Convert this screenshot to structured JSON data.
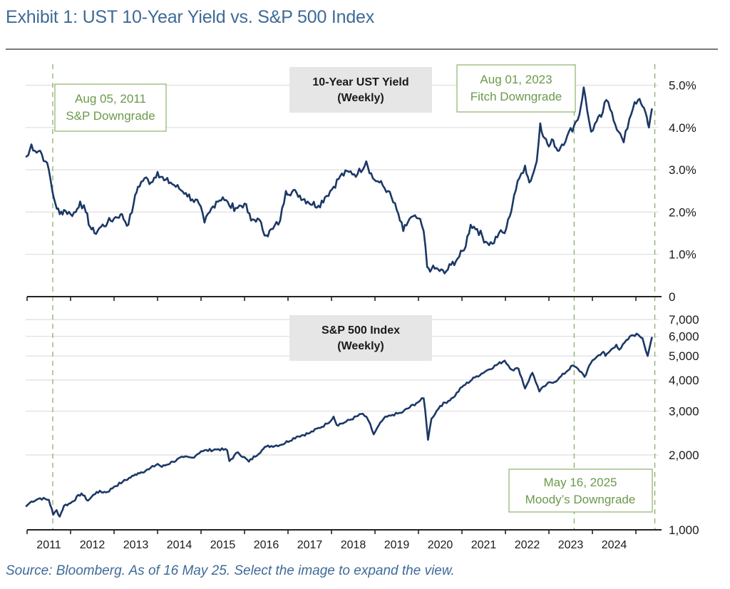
{
  "header": {
    "title": "Exhibit 1: UST 10-Year Yield vs. S&P 500 Index"
  },
  "footer": {
    "source": "Source: Bloomberg. As of 16 May 25. Select the image to expand the view."
  },
  "colors": {
    "line": "#1b3866",
    "annotation": "#6b9a4b",
    "panel_box": "#e6e6e6",
    "grid": "#dedede",
    "title": "#3f6a97"
  },
  "chart_data": [
    {
      "type": "line",
      "title": "10-Year UST Yield",
      "subtitle": "(Weekly)",
      "ylabel": "",
      "xlabel": "",
      "xlim": [
        2010.95,
        2025.45
      ],
      "ylim": [
        0,
        5.3
      ],
      "y_ticks": [
        0,
        1,
        2,
        3,
        4,
        5
      ],
      "y_tick_labels": [
        "0",
        "1.0%",
        "2.0%",
        "3.0%",
        "4.0%",
        "5.0%"
      ],
      "grid": true,
      "y_axis_side": "right",
      "series": [
        {
          "name": "10-Year UST Yield",
          "x": [
            2010.97,
            2011.03,
            2011.1,
            2011.18,
            2011.3,
            2011.42,
            2011.5,
            2011.58,
            2011.65,
            2011.75,
            2011.85,
            2012.0,
            2012.12,
            2012.22,
            2012.35,
            2012.45,
            2012.55,
            2012.7,
            2012.85,
            2013.0,
            2013.15,
            2013.33,
            2013.45,
            2013.55,
            2013.7,
            2013.85,
            2014.0,
            2014.15,
            2014.3,
            2014.5,
            2014.65,
            2014.8,
            2014.95,
            2015.08,
            2015.2,
            2015.35,
            2015.5,
            2015.65,
            2015.8,
            2016.0,
            2016.15,
            2016.3,
            2016.5,
            2016.65,
            2016.82,
            2016.95,
            2017.2,
            2017.45,
            2017.7,
            2017.85,
            2018.05,
            2018.2,
            2018.4,
            2018.6,
            2018.8,
            2018.95,
            2019.1,
            2019.3,
            2019.5,
            2019.65,
            2019.8,
            2020.0,
            2020.12,
            2020.2,
            2020.3,
            2020.45,
            2020.6,
            2020.75,
            2020.9,
            2021.05,
            2021.2,
            2021.35,
            2021.55,
            2021.7,
            2021.85,
            2021.98,
            2022.1,
            2022.2,
            2022.32,
            2022.45,
            2022.55,
            2022.65,
            2022.72,
            2022.8,
            2022.9,
            2023.0,
            2023.1,
            2023.2,
            2023.3,
            2023.42,
            2023.58,
            2023.7,
            2023.8,
            2023.88,
            2023.97,
            2024.1,
            2024.2,
            2024.32,
            2024.45,
            2024.6,
            2024.72,
            2024.85,
            2024.97,
            2025.05,
            2025.15,
            2025.25,
            2025.3,
            2025.37
          ],
          "y": [
            3.3,
            3.35,
            3.6,
            3.45,
            3.45,
            3.2,
            3.0,
            2.5,
            2.2,
            1.95,
            2.05,
            1.95,
            2.0,
            2.25,
            2.0,
            1.65,
            1.5,
            1.65,
            1.75,
            1.85,
            1.95,
            1.7,
            2.2,
            2.6,
            2.8,
            2.7,
            2.95,
            2.75,
            2.7,
            2.55,
            2.45,
            2.3,
            2.2,
            1.75,
            2.0,
            2.25,
            2.35,
            2.15,
            2.1,
            2.2,
            1.8,
            1.85,
            1.45,
            1.6,
            1.8,
            2.5,
            2.45,
            2.25,
            2.15,
            2.35,
            2.6,
            2.85,
            2.95,
            2.9,
            3.2,
            2.8,
            2.7,
            2.5,
            2.05,
            1.55,
            1.85,
            1.85,
            1.55,
            0.7,
            0.65,
            0.65,
            0.55,
            0.75,
            0.9,
            1.1,
            1.7,
            1.6,
            1.3,
            1.25,
            1.5,
            1.5,
            1.9,
            2.4,
            2.8,
            3.1,
            2.7,
            2.95,
            3.2,
            4.1,
            3.75,
            3.55,
            3.7,
            3.45,
            3.6,
            3.8,
            4.05,
            4.3,
            4.95,
            4.4,
            3.9,
            4.15,
            4.25,
            4.65,
            4.35,
            3.9,
            3.65,
            4.2,
            4.6,
            4.65,
            4.5,
            4.25,
            4.0,
            4.45
          ]
        }
      ],
      "annotations": [
        {
          "date": 2011.59,
          "label_line1": "Aug 05, 2011",
          "label_line2": "S&P Downgrade"
        },
        {
          "date": 2023.58,
          "label_line1": "Aug 01, 2023",
          "label_line2": "Fitch Downgrade"
        }
      ]
    },
    {
      "type": "line",
      "title": "S&P 500 Index",
      "subtitle": "(Weekly)",
      "ylabel": "",
      "xlabel": "",
      "xlim": [
        2010.95,
        2025.45
      ],
      "ylim": [
        1000,
        7000
      ],
      "y_scale": "log",
      "y_ticks": [
        1000,
        2000,
        3000,
        4000,
        5000,
        6000,
        7000
      ],
      "y_tick_labels": [
        "1,000",
        "2,000",
        "3,000",
        "4,000",
        "5,000",
        "6,000",
        "7,000"
      ],
      "grid": true,
      "y_axis_side": "right",
      "x_ticks": [
        2011,
        2012,
        2013,
        2014,
        2015,
        2016,
        2017,
        2018,
        2019,
        2020,
        2021,
        2022,
        2023,
        2024,
        2025
      ],
      "x_tick_labels": [
        "2011",
        "2012",
        "2013",
        "2014",
        "2015",
        "2016",
        "2017",
        "2018",
        "2019",
        "2020",
        "2021",
        "2022",
        "2023",
        "2024"
      ],
      "series": [
        {
          "name": "S&P 500 Index",
          "x": [
            2010.97,
            2011.1,
            2011.3,
            2011.5,
            2011.6,
            2011.68,
            2011.75,
            2011.85,
            2012.0,
            2012.25,
            2012.4,
            2012.6,
            2012.85,
            2013.0,
            2013.2,
            2013.45,
            2013.55,
            2013.8,
            2014.0,
            2014.1,
            2014.35,
            2014.6,
            2014.8,
            2015.0,
            2015.4,
            2015.6,
            2015.65,
            2015.85,
            2016.1,
            2016.4,
            2016.5,
            2016.85,
            2017.2,
            2017.5,
            2017.9,
            2018.05,
            2018.12,
            2018.3,
            2018.72,
            2018.85,
            2018.97,
            2019.2,
            2019.4,
            2019.6,
            2019.95,
            2020.12,
            2020.22,
            2020.3,
            2020.5,
            2020.8,
            2021.0,
            2021.3,
            2021.6,
            2021.98,
            2022.15,
            2022.3,
            2022.45,
            2022.62,
            2022.78,
            2022.95,
            2023.2,
            2023.55,
            2023.75,
            2023.82,
            2024.0,
            2024.25,
            2024.3,
            2024.55,
            2024.62,
            2024.9,
            2025.05,
            2025.15,
            2025.27,
            2025.37
          ],
          "y": [
            1240,
            1300,
            1340,
            1320,
            1150,
            1200,
            1130,
            1250,
            1280,
            1400,
            1310,
            1420,
            1420,
            1490,
            1560,
            1650,
            1690,
            1750,
            1840,
            1790,
            1880,
            1960,
            1950,
            2070,
            2110,
            2090,
            1890,
            2050,
            1880,
            2090,
            2160,
            2200,
            2370,
            2450,
            2670,
            2850,
            2640,
            2700,
            2930,
            2750,
            2420,
            2800,
            2900,
            2950,
            3230,
            3380,
            2300,
            2800,
            3150,
            3400,
            3750,
            4100,
            4400,
            4790,
            4400,
            4450,
            3700,
            4280,
            3600,
            3850,
            4000,
            4580,
            4300,
            4120,
            4800,
            5200,
            5000,
            5550,
            5300,
            6050,
            6100,
            5900,
            5000,
            5960
          ]
        }
      ],
      "annotations": [
        {
          "date": 2011.59,
          "label_line1": "",
          "label_line2": ""
        },
        {
          "date": 2023.58,
          "label_line1": "",
          "label_line2": ""
        },
        {
          "date": 2025.37,
          "label_line1": "May 16, 2025",
          "label_line2": "Moody’s Downgrade"
        }
      ]
    }
  ]
}
